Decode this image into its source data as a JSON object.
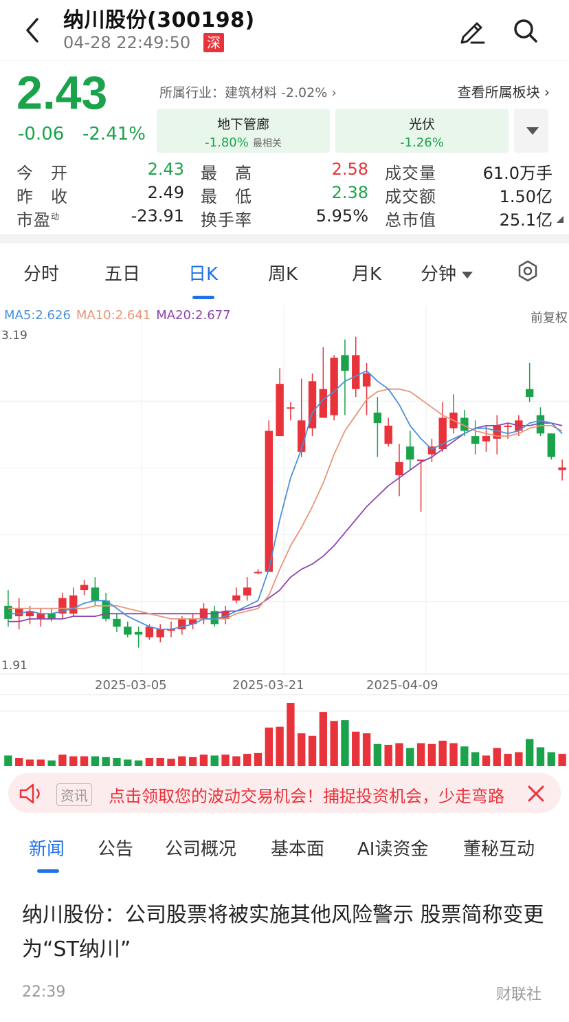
{
  "header": {
    "title": "纳川股份(300198)",
    "datetime": "04-28 22:49:50",
    "exchange_badge": "深"
  },
  "quote": {
    "price": "2.43",
    "change": "-0.06",
    "change_pct": "-2.41%",
    "industry_text": "所属行业：建筑材料 -2.02% ›",
    "sector_link": "查看所属板块 ›",
    "sectors": [
      {
        "name": "地下管廊",
        "pct": "-1.80%",
        "tag": "最相关"
      },
      {
        "name": "光伏",
        "pct": "-1.26%",
        "tag": ""
      }
    ],
    "stats": [
      {
        "label": "今　开",
        "value": "2.43",
        "color": "green"
      },
      {
        "label": "最　高",
        "value": "2.58",
        "color": "red"
      },
      {
        "label": "成交量",
        "value": "61.0万手",
        "color": "dark"
      },
      {
        "label": "昨　收",
        "value": "2.49",
        "color": "dark"
      },
      {
        "label": "最　低",
        "value": "2.38",
        "color": "green"
      },
      {
        "label": "成交额",
        "value": "1.50亿",
        "color": "dark"
      },
      {
        "label": "市盈",
        "label_sup": "动",
        "value": "-23.91",
        "color": "dark"
      },
      {
        "label": "换手率",
        "value": "5.95%",
        "color": "dark"
      },
      {
        "label": "总市值",
        "value": "25.1亿",
        "color": "dark"
      }
    ]
  },
  "tabs": {
    "items": [
      "分时",
      "五日",
      "日K",
      "周K",
      "月K",
      "分钟"
    ],
    "active": "日K"
  },
  "chart": {
    "ma5": "MA5:2.626",
    "ma10": "MA10:2.641",
    "ma20": "MA20:2.677",
    "adjust": "前复权",
    "ymax_label": "3.19",
    "ymin_label": "1.91",
    "date_labels": [
      "2025-03-05",
      "2025-03-21",
      "2025-04-09"
    ]
  },
  "chart_data": {
    "type": "candlestick",
    "ylim": [
      1.91,
      3.19
    ],
    "colors": {
      "up": "#e8333a",
      "down": "#1aa34a",
      "ma5": "#4a90d9",
      "ma10": "#e8957a",
      "ma20": "#8e44ad"
    },
    "candles": [
      {
        "o": 2.15,
        "h": 2.21,
        "l": 2.07,
        "c": 2.1,
        "v": 13
      },
      {
        "o": 2.11,
        "h": 2.18,
        "l": 2.06,
        "c": 2.14,
        "v": 10
      },
      {
        "o": 2.11,
        "h": 2.15,
        "l": 2.08,
        "c": 2.13,
        "v": 8
      },
      {
        "o": 2.1,
        "h": 2.14,
        "l": 2.07,
        "c": 2.12,
        "v": 8
      },
      {
        "o": 2.12,
        "h": 2.14,
        "l": 2.09,
        "c": 2.1,
        "v": 7
      },
      {
        "o": 2.12,
        "h": 2.2,
        "l": 2.1,
        "c": 2.18,
        "v": 14
      },
      {
        "o": 2.12,
        "h": 2.22,
        "l": 2.11,
        "c": 2.19,
        "v": 12
      },
      {
        "o": 2.21,
        "h": 2.25,
        "l": 2.19,
        "c": 2.23,
        "v": 12
      },
      {
        "o": 2.22,
        "h": 2.26,
        "l": 2.15,
        "c": 2.17,
        "v": 12
      },
      {
        "o": 2.17,
        "h": 2.2,
        "l": 2.09,
        "c": 2.1,
        "v": 11
      },
      {
        "o": 2.1,
        "h": 2.12,
        "l": 2.05,
        "c": 2.07,
        "v": 10
      },
      {
        "o": 2.07,
        "h": 2.09,
        "l": 2.03,
        "c": 2.04,
        "v": 8
      },
      {
        "o": 2.05,
        "h": 2.07,
        "l": 1.99,
        "c": 2.04,
        "v": 7
      },
      {
        "o": 2.03,
        "h": 2.08,
        "l": 2.02,
        "c": 2.07,
        "v": 10
      },
      {
        "o": 2.03,
        "h": 2.08,
        "l": 2.01,
        "c": 2.06,
        "v": 10
      },
      {
        "o": 2.06,
        "h": 2.09,
        "l": 2.03,
        "c": 2.06,
        "v": 9
      },
      {
        "o": 2.06,
        "h": 2.11,
        "l": 2.04,
        "c": 2.1,
        "v": 12
      },
      {
        "o": 2.08,
        "h": 2.12,
        "l": 2.06,
        "c": 2.1,
        "v": 11
      },
      {
        "o": 2.1,
        "h": 2.16,
        "l": 2.08,
        "c": 2.14,
        "v": 14
      },
      {
        "o": 2.13,
        "h": 2.15,
        "l": 2.07,
        "c": 2.08,
        "v": 13
      },
      {
        "o": 2.1,
        "h": 2.15,
        "l": 2.08,
        "c": 2.13,
        "v": 14
      },
      {
        "o": 2.17,
        "h": 2.22,
        "l": 2.16,
        "c": 2.19,
        "v": 12
      },
      {
        "o": 2.19,
        "h": 2.26,
        "l": 2.17,
        "c": 2.22,
        "v": 15
      },
      {
        "o": 2.28,
        "h": 2.29,
        "l": 2.27,
        "c": 2.28,
        "v": 16
      },
      {
        "o": 2.28,
        "h": 2.86,
        "l": 2.28,
        "c": 2.82,
        "v": 47
      },
      {
        "o": 2.8,
        "h": 3.06,
        "l": 2.8,
        "c": 3.0,
        "v": 48
      },
      {
        "o": 2.91,
        "h": 2.93,
        "l": 2.86,
        "c": 2.91,
        "v": 77
      },
      {
        "o": 2.74,
        "h": 3.02,
        "l": 2.72,
        "c": 2.86,
        "v": 40
      },
      {
        "o": 2.83,
        "h": 3.04,
        "l": 2.8,
        "c": 3.01,
        "v": 37
      },
      {
        "o": 2.87,
        "h": 3.14,
        "l": 2.87,
        "c": 2.98,
        "v": 66
      },
      {
        "o": 2.88,
        "h": 3.11,
        "l": 2.86,
        "c": 3.1,
        "v": 55
      },
      {
        "o": 3.11,
        "h": 3.17,
        "l": 2.88,
        "c": 3.05,
        "v": 56
      },
      {
        "o": 2.98,
        "h": 3.18,
        "l": 2.95,
        "c": 3.11,
        "v": 42
      },
      {
        "o": 2.99,
        "h": 3.08,
        "l": 2.88,
        "c": 3.04,
        "v": 40
      },
      {
        "o": 2.89,
        "h": 2.95,
        "l": 2.72,
        "c": 2.85,
        "v": 27
      },
      {
        "o": 2.77,
        "h": 2.87,
        "l": 2.76,
        "c": 2.84,
        "v": 26
      },
      {
        "o": 2.65,
        "h": 2.77,
        "l": 2.57,
        "c": 2.7,
        "v": 28
      },
      {
        "o": 2.76,
        "h": 2.82,
        "l": 2.67,
        "c": 2.71,
        "v": 22
      },
      {
        "o": 2.71,
        "h": 2.71,
        "l": 2.51,
        "c": 2.71,
        "v": 28
      },
      {
        "o": 2.73,
        "h": 2.79,
        "l": 2.7,
        "c": 2.76,
        "v": 27
      },
      {
        "o": 2.75,
        "h": 2.93,
        "l": 2.74,
        "c": 2.87,
        "v": 31
      },
      {
        "o": 2.83,
        "h": 2.96,
        "l": 2.81,
        "c": 2.89,
        "v": 28
      },
      {
        "o": 2.87,
        "h": 2.9,
        "l": 2.8,
        "c": 2.82,
        "v": 24
      },
      {
        "o": 2.8,
        "h": 2.86,
        "l": 2.73,
        "c": 2.77,
        "v": 17
      },
      {
        "o": 2.78,
        "h": 2.84,
        "l": 2.74,
        "c": 2.8,
        "v": 13
      },
      {
        "o": 2.79,
        "h": 2.88,
        "l": 2.73,
        "c": 2.84,
        "v": 22
      },
      {
        "o": 2.84,
        "h": 2.85,
        "l": 2.79,
        "c": 2.84,
        "v": 15
      },
      {
        "o": 2.82,
        "h": 2.88,
        "l": 2.8,
        "c": 2.86,
        "v": 17
      },
      {
        "o": 2.98,
        "h": 3.08,
        "l": 2.93,
        "c": 2.95,
        "v": 33
      },
      {
        "o": 2.88,
        "h": 2.91,
        "l": 2.8,
        "c": 2.81,
        "v": 23
      },
      {
        "o": 2.81,
        "h": 2.81,
        "l": 2.71,
        "c": 2.72,
        "v": 17
      },
      {
        "o": 2.67,
        "h": 2.71,
        "l": 2.63,
        "c": 2.68,
        "v": 15
      }
    ],
    "ma5": [
      2.12,
      2.12,
      2.13,
      2.12,
      2.12,
      2.13,
      2.14,
      2.16,
      2.17,
      2.17,
      2.14,
      2.11,
      2.09,
      2.07,
      2.06,
      2.06,
      2.07,
      2.08,
      2.1,
      2.1,
      2.11,
      2.13,
      2.15,
      2.17,
      2.29,
      2.48,
      2.64,
      2.75,
      2.89,
      2.94,
      2.97,
      3.01,
      3.03,
      3.05,
      3.01,
      2.98,
      2.92,
      2.84,
      2.79,
      2.75,
      2.77,
      2.79,
      2.81,
      2.83,
      2.83,
      2.82,
      2.81,
      2.82,
      2.85,
      2.86,
      2.85,
      2.81
    ],
    "ma10": [
      2.14,
      2.14,
      2.14,
      2.14,
      2.14,
      2.14,
      2.14,
      2.14,
      2.15,
      2.15,
      2.15,
      2.14,
      2.13,
      2.12,
      2.11,
      2.1,
      2.1,
      2.1,
      2.1,
      2.1,
      2.1,
      2.12,
      2.13,
      2.14,
      2.19,
      2.29,
      2.38,
      2.45,
      2.53,
      2.62,
      2.73,
      2.82,
      2.88,
      2.94,
      2.97,
      2.98,
      2.98,
      2.97,
      2.94,
      2.91,
      2.88,
      2.86,
      2.84,
      2.82,
      2.81,
      2.8,
      2.8,
      2.81,
      2.83,
      2.84,
      2.84,
      2.82
    ],
    "ma20": [
      2.09,
      2.09,
      2.1,
      2.1,
      2.1,
      2.1,
      2.11,
      2.11,
      2.11,
      2.12,
      2.12,
      2.12,
      2.12,
      2.12,
      2.12,
      2.12,
      2.12,
      2.12,
      2.12,
      2.12,
      2.13,
      2.13,
      2.14,
      2.15,
      2.18,
      2.21,
      2.26,
      2.29,
      2.31,
      2.34,
      2.38,
      2.43,
      2.48,
      2.53,
      2.57,
      2.61,
      2.64,
      2.67,
      2.7,
      2.72,
      2.75,
      2.78,
      2.81,
      2.83,
      2.84,
      2.84,
      2.85,
      2.84,
      2.84,
      2.85,
      2.85,
      2.84
    ]
  },
  "promo": {
    "tag": "资讯",
    "text": "点击领取您的波动交易机会！捕捉投资机会，少走弯路"
  },
  "news_tabs": {
    "items": [
      "新闻",
      "公告",
      "公司概况",
      "基本面",
      "AI读资金",
      "董秘互动"
    ],
    "active": "新闻"
  },
  "news": [
    {
      "title": "纳川股份：公司股票将被实施其他风险警示 股票简称变更为“ST纳川”",
      "time": "22:39",
      "source": "财联社"
    }
  ]
}
